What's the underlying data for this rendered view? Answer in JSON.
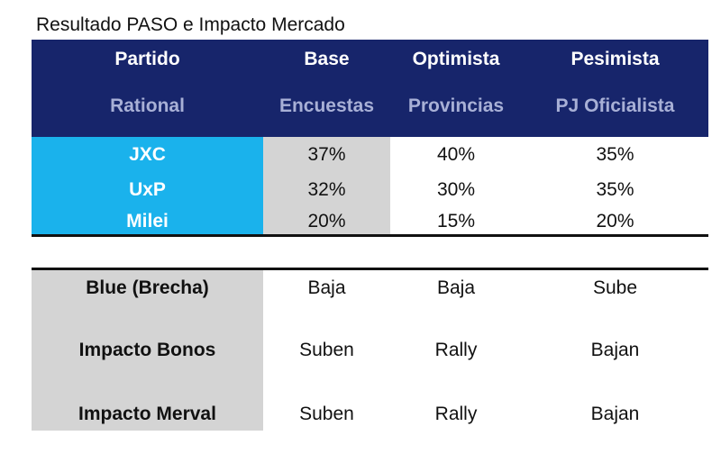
{
  "title": "Resultado PASO e Impacto Mercado",
  "header": {
    "row1": [
      "Partido",
      "Base",
      "Optimista",
      "Pesimista"
    ],
    "row2": [
      "Rational",
      "Encuestas",
      "Provincias",
      "PJ Oficialista"
    ]
  },
  "results": [
    {
      "party": "JXC",
      "base": "37%",
      "optimista": "40%",
      "pesimista": "35%"
    },
    {
      "party": "UxP",
      "base": "32%",
      "optimista": "30%",
      "pesimista": "35%"
    },
    {
      "party": "Milei",
      "base": "20%",
      "optimista": "15%",
      "pesimista": "20%"
    }
  ],
  "impacts": [
    {
      "label": "Blue (Brecha)",
      "base": "Baja",
      "optimista": "Baja",
      "pesimista": "Sube"
    },
    {
      "label": "Impacto Bonos",
      "base": "Suben",
      "optimista": "Rally",
      "pesimista": "Bajan"
    },
    {
      "label": "Impacto Merval",
      "base": "Suben",
      "optimista": "Rally",
      "pesimista": "Bajan"
    }
  ],
  "colors": {
    "header_bg": "#17256b",
    "header_text": "#ffffff",
    "header_subtext": "#a8b0d6",
    "party_bg": "#1ab2ec",
    "gray_bg": "#d4d4d4"
  }
}
